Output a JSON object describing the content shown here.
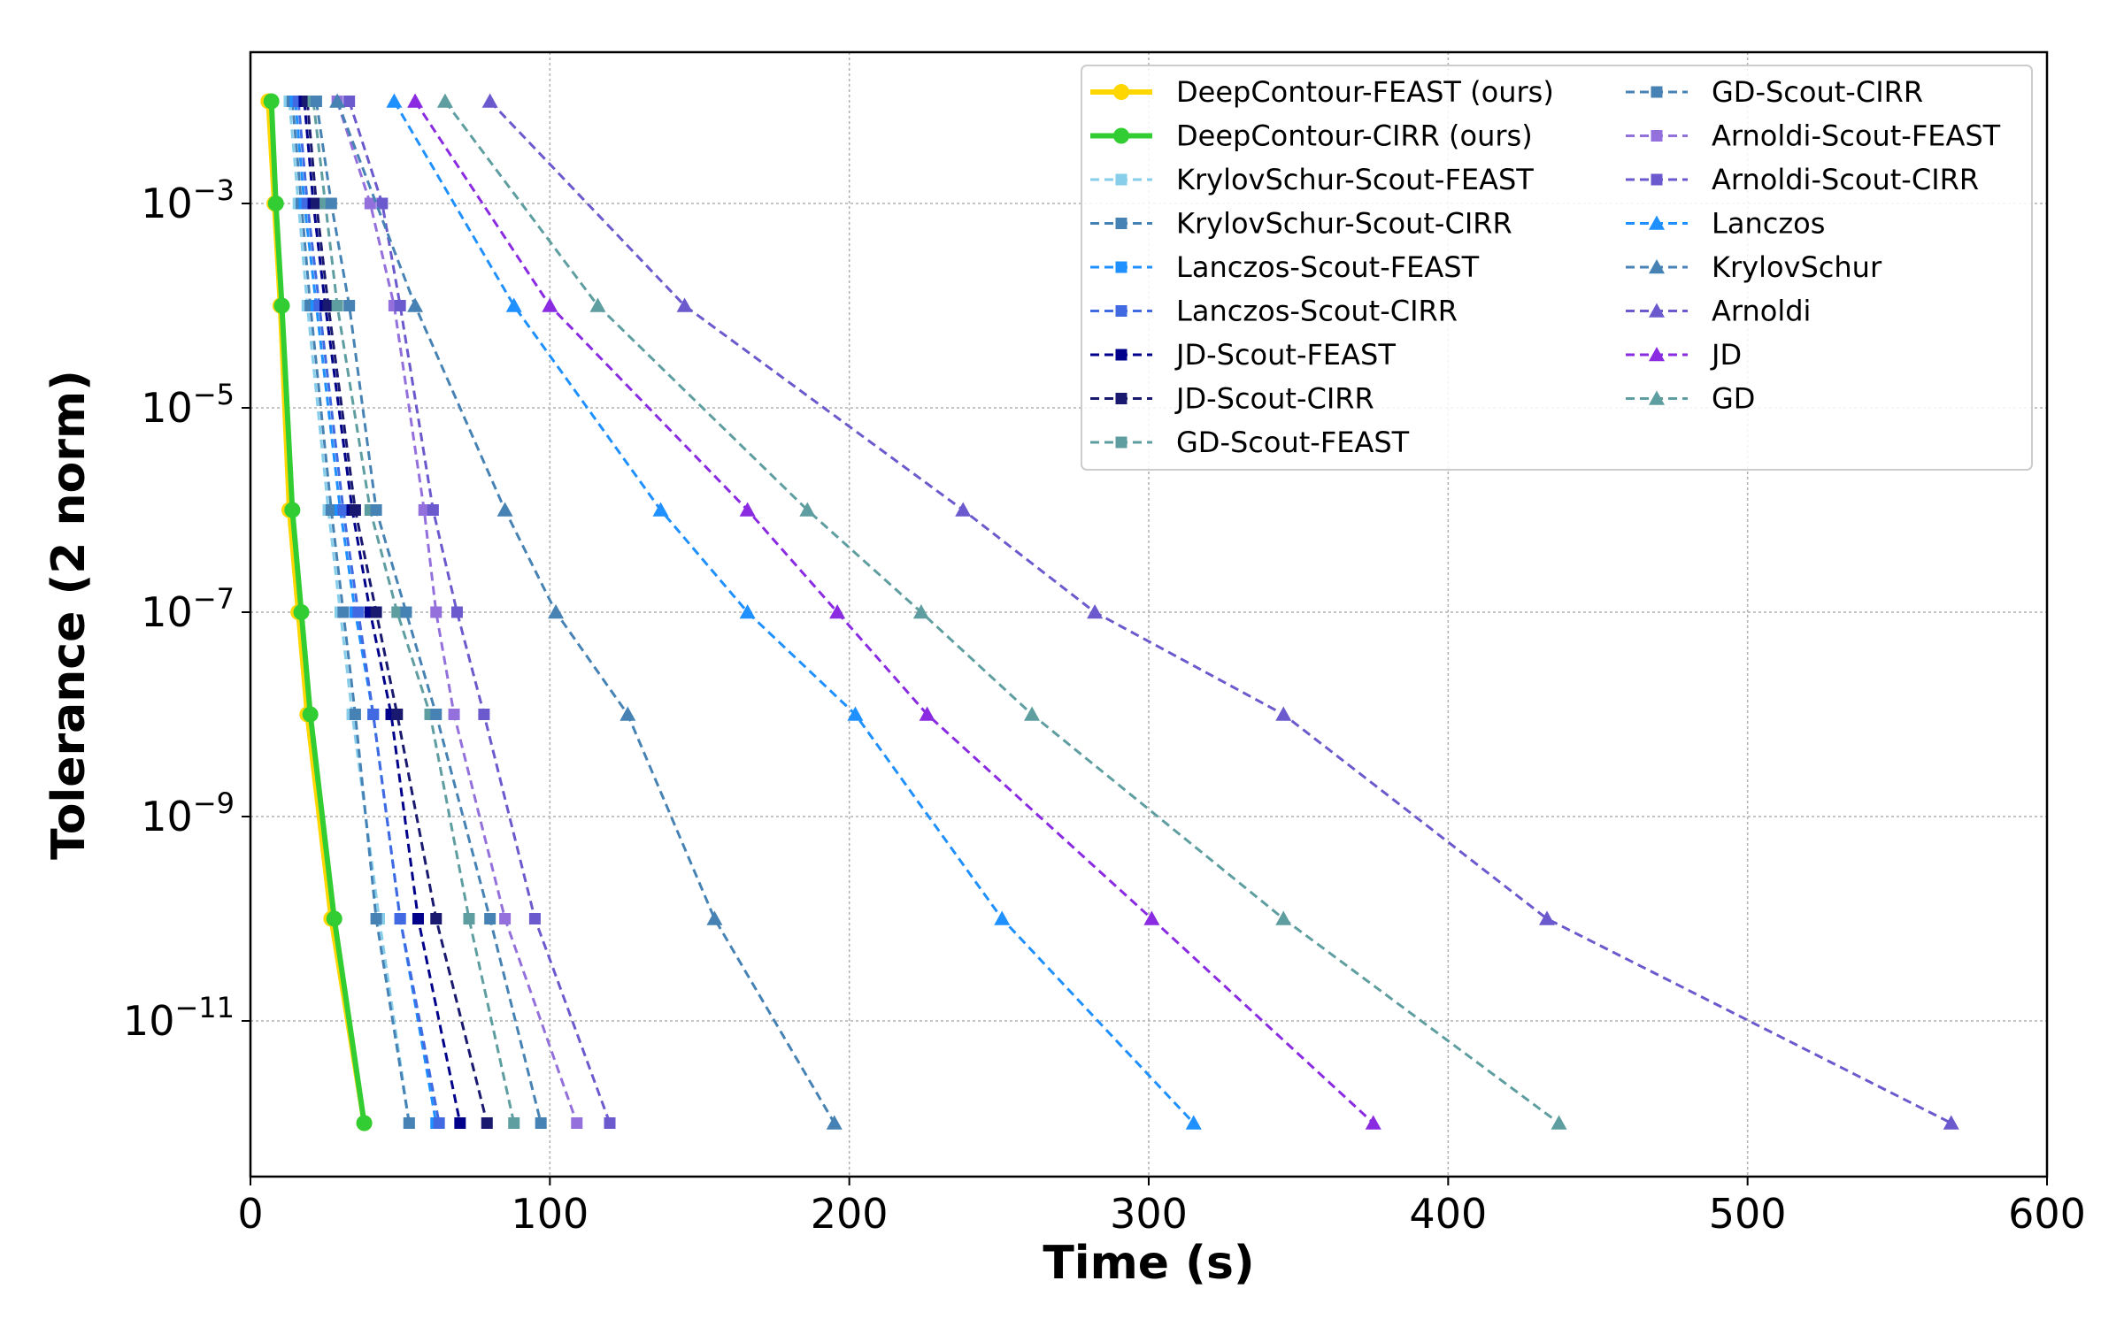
{
  "chart_data": {
    "type": "line",
    "title": "",
    "xlabel": "Time (s)",
    "ylabel": "Tolerance (2 norm)",
    "xlim": [
      0,
      600
    ],
    "ylim_log10": [
      -12.9,
      -1.5
    ],
    "yscale": "log",
    "grid": true,
    "legend_position": "upper right",
    "xticks": [
      0,
      100,
      200,
      300,
      400,
      500,
      600
    ],
    "yticks": [
      {
        "exp": -3,
        "label": "10",
        "sup": "−3"
      },
      {
        "exp": -5,
        "label": "10",
        "sup": "−5"
      },
      {
        "exp": -7,
        "label": "10",
        "sup": "−7"
      },
      {
        "exp": -9,
        "label": "10",
        "sup": "−9"
      },
      {
        "exp": -11,
        "label": "10",
        "sup": "−11"
      }
    ],
    "series": [
      {
        "name": "DeepContour-FEAST (ours)",
        "color": "#FFD700",
        "style": "solid",
        "marker": "circle",
        "width": 6,
        "log10_y": [
          -2,
          -3,
          -4,
          -6,
          -7,
          -8,
          -10,
          -12
        ],
        "x": [
          6,
          8,
          10,
          13,
          16,
          19,
          27,
          38
        ]
      },
      {
        "name": "DeepContour-CIRR (ours)",
        "color": "#32CD32",
        "style": "solid",
        "marker": "circle",
        "width": 6,
        "log10_y": [
          -2,
          -3,
          -4,
          -6,
          -7,
          -8,
          -10,
          -12
        ],
        "x": [
          7,
          8.5,
          10.5,
          14,
          17,
          20,
          28,
          38
        ]
      },
      {
        "name": "KrylovSchur-Scout-FEAST",
        "color": "#87CEEB",
        "style": "dashed",
        "marker": "square",
        "width": 3,
        "log10_y": [
          -2,
          -3,
          -4,
          -6,
          -7,
          -8,
          -10,
          -12
        ],
        "x": [
          13,
          16,
          19,
          26,
          30,
          34,
          43,
          53
        ]
      },
      {
        "name": "KrylovSchur-Scout-CIRR",
        "color": "#4682B4",
        "style": "dashed",
        "marker": "square",
        "width": 3,
        "log10_y": [
          -2,
          -3,
          -4,
          -6,
          -7,
          -8,
          -10,
          -12
        ],
        "x": [
          14,
          17,
          20,
          27,
          31,
          35,
          42,
          53
        ]
      },
      {
        "name": "Lanczos-Scout-FEAST",
        "color": "#1E90FF",
        "style": "dashed",
        "marker": "square",
        "width": 3,
        "log10_y": [
          -2,
          -3,
          -4,
          -6,
          -7,
          -8,
          -10,
          -12
        ],
        "x": [
          15,
          18,
          22,
          30,
          35,
          41,
          50,
          62
        ]
      },
      {
        "name": "Lanczos-Scout-CIRR",
        "color": "#4169E1",
        "style": "dashed",
        "marker": "square",
        "width": 3,
        "log10_y": [
          -2,
          -3,
          -4,
          -6,
          -7,
          -8,
          -10,
          -12
        ],
        "x": [
          16,
          19,
          23,
          31,
          36,
          41,
          50,
          63
        ]
      },
      {
        "name": "JD-Scout-FEAST",
        "color": "#00008B",
        "style": "dashed",
        "marker": "square",
        "width": 3,
        "log10_y": [
          -2,
          -3,
          -4,
          -6,
          -7,
          -8,
          -10,
          -12
        ],
        "x": [
          18,
          21,
          25,
          34,
          40,
          47,
          56,
          70
        ]
      },
      {
        "name": "JD-Scout-CIRR",
        "color": "#191970",
        "style": "dashed",
        "marker": "square",
        "width": 3,
        "log10_y": [
          -2,
          -3,
          -4,
          -6,
          -7,
          -8,
          -10,
          -12
        ],
        "x": [
          19,
          22,
          26,
          35,
          42,
          49,
          62,
          79
        ]
      },
      {
        "name": "GD-Scout-FEAST",
        "color": "#5F9EA0",
        "style": "dashed",
        "marker": "square",
        "width": 3,
        "log10_y": [
          -2,
          -3,
          -4,
          -6,
          -7,
          -8,
          -10,
          -12
        ],
        "x": [
          21,
          25,
          29,
          40,
          49,
          60,
          73,
          88
        ]
      },
      {
        "name": "GD-Scout-CIRR",
        "color": "#4682B4",
        "style": "dashed",
        "marker": "square",
        "width": 3,
        "log10_y": [
          -2,
          -3,
          -4,
          -6,
          -7,
          -8,
          -10,
          -12
        ],
        "x": [
          22,
          27,
          33,
          42,
          52,
          62,
          80,
          97
        ]
      },
      {
        "name": "Arnoldi-Scout-FEAST",
        "color": "#9370DB",
        "style": "dashed",
        "marker": "square",
        "width": 3,
        "log10_y": [
          -2,
          -3,
          -4,
          -6,
          -7,
          -8,
          -10,
          -12
        ],
        "x": [
          29,
          40,
          48,
          58,
          62,
          68,
          85,
          109
        ]
      },
      {
        "name": "Arnoldi-Scout-CIRR",
        "color": "#6A5ACD",
        "style": "dashed",
        "marker": "square",
        "width": 3,
        "log10_y": [
          -2,
          -3,
          -4,
          -6,
          -7,
          -8,
          -10,
          -12
        ],
        "x": [
          33,
          44,
          50,
          61,
          69,
          78,
          95,
          120
        ]
      },
      {
        "name": "Lanczos",
        "color": "#1E90FF",
        "style": "dashed",
        "marker": "triangle",
        "width": 3,
        "log10_y": [
          -2,
          -4,
          -6,
          -7,
          -8,
          -10,
          -12
        ],
        "x": [
          48,
          88,
          137,
          166,
          202,
          251,
          315
        ]
      },
      {
        "name": "KrylovSchur",
        "color": "#4682B4",
        "style": "dashed",
        "marker": "triangle",
        "width": 3,
        "log10_y": [
          -2,
          -4,
          -6,
          -7,
          -8,
          -10,
          -12
        ],
        "x": [
          29,
          55,
          85,
          102,
          126,
          155,
          195
        ]
      },
      {
        "name": "Arnoldi",
        "color": "#6A5ACD",
        "style": "dashed",
        "marker": "triangle",
        "width": 3,
        "log10_y": [
          -2,
          -4,
          -6,
          -7,
          -8,
          -10,
          -12
        ],
        "x": [
          80,
          145,
          238,
          282,
          345,
          433,
          568
        ]
      },
      {
        "name": "JD",
        "color": "#8A2BE2",
        "style": "dashed",
        "marker": "triangle",
        "width": 3,
        "log10_y": [
          -2,
          -4,
          -6,
          -7,
          -8,
          -10,
          -12
        ],
        "x": [
          55,
          100,
          166,
          196,
          226,
          301,
          375
        ]
      },
      {
        "name": "GD",
        "color": "#5F9EA0",
        "style": "dashed",
        "marker": "triangle",
        "width": 3,
        "log10_y": [
          -2,
          -4,
          -6,
          -7,
          -8,
          -10,
          -12
        ],
        "x": [
          65,
          116,
          186,
          224,
          261,
          345,
          437
        ]
      }
    ]
  }
}
